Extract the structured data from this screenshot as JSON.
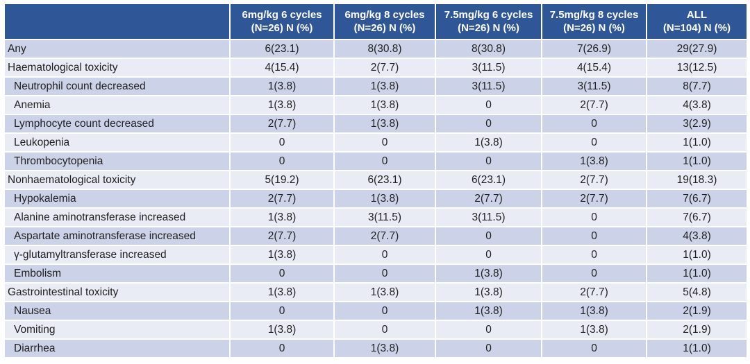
{
  "colors": {
    "header_bg": "#2F5797",
    "header_text": "#FFFFFF",
    "band_dark": "#CCD3E8",
    "band_light": "#E9EBF5",
    "body_text": "#1F1F1F",
    "grid_line": "#FFFFFF"
  },
  "table": {
    "description": "Adverse events table with treatment-arm columns",
    "columns": [
      {
        "line1": "",
        "line2": ""
      },
      {
        "line1": "6mg/kg 6 cycles",
        "line2": "(N=26) N (%)"
      },
      {
        "line1": "6mg/kg 8 cycles",
        "line2": "(N=26) N (%)"
      },
      {
        "line1": "7.5mg/kg 6 cycles",
        "line2": "(N=26) N (%)"
      },
      {
        "line1": "7.5mg/kg 8 cycles",
        "line2": "(N=26) N (%)"
      },
      {
        "line1": "ALL",
        "line2": "(N=104) N (%)"
      }
    ],
    "rows": [
      {
        "label": "Any",
        "indent": false,
        "values": [
          "6(23.1)",
          "8(30.8)",
          "8(30.8)",
          "7(26.9)",
          "29(27.9)"
        ]
      },
      {
        "label": "Haematological toxicity",
        "indent": false,
        "values": [
          "4(15.4)",
          "2(7.7)",
          "3(11.5)",
          "4(15.4)",
          "13(12.5)"
        ]
      },
      {
        "label": "Neutrophil count decreased",
        "indent": true,
        "values": [
          "1(3.8)",
          "1(3.8)",
          "3(11.5)",
          "3(11.5)",
          "8(7.7)"
        ]
      },
      {
        "label": "Anemia",
        "indent": true,
        "values": [
          "1(3.8)",
          "1(3.8)",
          "0",
          "2(7.7)",
          "4(3.8)"
        ]
      },
      {
        "label": "Lymphocyte count decreased",
        "indent": true,
        "values": [
          "2(7.7)",
          "1(3.8)",
          "0",
          "0",
          "3(2.9)"
        ]
      },
      {
        "label": "Leukopenia",
        "indent": true,
        "values": [
          "0",
          "0",
          "1(3.8)",
          "0",
          "1(1.0)"
        ]
      },
      {
        "label": "Thrombocytopenia",
        "indent": true,
        "values": [
          "0",
          "0",
          "0",
          "1(3.8)",
          "1(1.0)"
        ]
      },
      {
        "label": "Nonhaematological toxicity",
        "indent": false,
        "values": [
          "5(19.2)",
          "6(23.1)",
          "6(23.1)",
          "2(7.7)",
          "19(18.3)"
        ]
      },
      {
        "label": "Hypokalemia",
        "indent": true,
        "values": [
          "2(7.7)",
          "1(3.8)",
          "2(7.7)",
          "2(7.7)",
          "7(6.7)"
        ]
      },
      {
        "label": "Alanine aminotransferase increased",
        "indent": true,
        "values": [
          "1(3.8)",
          "3(11.5)",
          "3(11.5)",
          "0",
          "7(6.7)"
        ]
      },
      {
        "label": "Aspartate aminotransferase increased",
        "indent": true,
        "values": [
          "2(7.7)",
          "2(7.7)",
          "0",
          "0",
          "4(3.8)"
        ]
      },
      {
        "label": "γ-glutamyltransferase increased",
        "indent": true,
        "values": [
          "1(3.8)",
          "0",
          "0",
          "0",
          "1(1.0)"
        ]
      },
      {
        "label": "Embolism",
        "indent": true,
        "values": [
          "0",
          "0",
          "1(3.8)",
          "0",
          "1(1.0)"
        ]
      },
      {
        "label": "Gastrointestinal toxicity",
        "indent": false,
        "values": [
          "1(3.8)",
          "1(3.8)",
          "1(3.8)",
          "2(7.7)",
          "5(4.8)"
        ]
      },
      {
        "label": "Nausea",
        "indent": true,
        "values": [
          "0",
          "0",
          "1(3.8)",
          "1(3.8)",
          "2(1.9)"
        ]
      },
      {
        "label": "Vomiting",
        "indent": true,
        "values": [
          "1(3.8)",
          "0",
          "0",
          "1(3.8)",
          "2(1.9)"
        ]
      },
      {
        "label": "Diarrhea",
        "indent": true,
        "values": [
          "0",
          "1(3.8)",
          "0",
          "0",
          "1(1.0)"
        ]
      }
    ]
  }
}
